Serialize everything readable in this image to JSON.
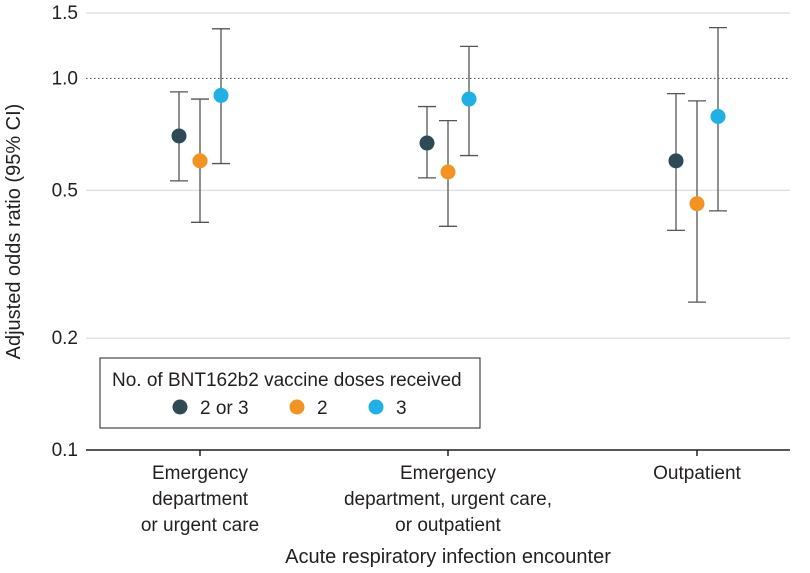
{
  "chart_data": {
    "type": "scatter",
    "subtype": "forest-plot-with-error-bars",
    "yscale": "log",
    "ylim": [
      0.1,
      1.5
    ],
    "yticks": [
      {
        "value": 0.1,
        "label": "0.1"
      },
      {
        "value": 0.2,
        "label": "0.2"
      },
      {
        "value": 0.5,
        "label": "0.5"
      },
      {
        "value": 1.0,
        "label": "1.0"
      },
      {
        "value": 1.5,
        "label": "1.5"
      }
    ],
    "reference_line": 1.0,
    "grid": true,
    "ylabel": "Adjusted odds ratio (95% CI)",
    "xlabel": "Acute respiratory infection encounter",
    "categories": [
      {
        "lines": [
          "Emergency",
          "department",
          "or urgent care"
        ]
      },
      {
        "lines": [
          "Emergency",
          "department, urgent care,",
          "or outpatient"
        ]
      },
      {
        "lines": [
          "Outpatient"
        ]
      }
    ],
    "legend": {
      "title": "No. of BNT162b2 vaccine doses received",
      "placement": "lower-left"
    },
    "series": [
      {
        "name": "2 or 3",
        "color": "#2e4a57",
        "points": [
          {
            "y": 0.7,
            "lo": 0.53,
            "hi": 0.92
          },
          {
            "y": 0.67,
            "lo": 0.54,
            "hi": 0.84
          },
          {
            "y": 0.6,
            "lo": 0.39,
            "hi": 0.91
          }
        ]
      },
      {
        "name": "2",
        "color": "#f39322",
        "points": [
          {
            "y": 0.6,
            "lo": 0.41,
            "hi": 0.88
          },
          {
            "y": 0.56,
            "lo": 0.4,
            "hi": 0.77
          },
          {
            "y": 0.46,
            "lo": 0.25,
            "hi": 0.87
          }
        ]
      },
      {
        "name": "3",
        "color": "#1fb1e6",
        "points": [
          {
            "y": 0.9,
            "lo": 0.59,
            "hi": 1.36
          },
          {
            "y": 0.88,
            "lo": 0.62,
            "hi": 1.22
          },
          {
            "y": 0.79,
            "lo": 0.44,
            "hi": 1.37
          }
        ]
      }
    ],
    "colors": {
      "grid": "#d3d3d3",
      "whisker": "#555555",
      "axis": "#231f20"
    }
  }
}
